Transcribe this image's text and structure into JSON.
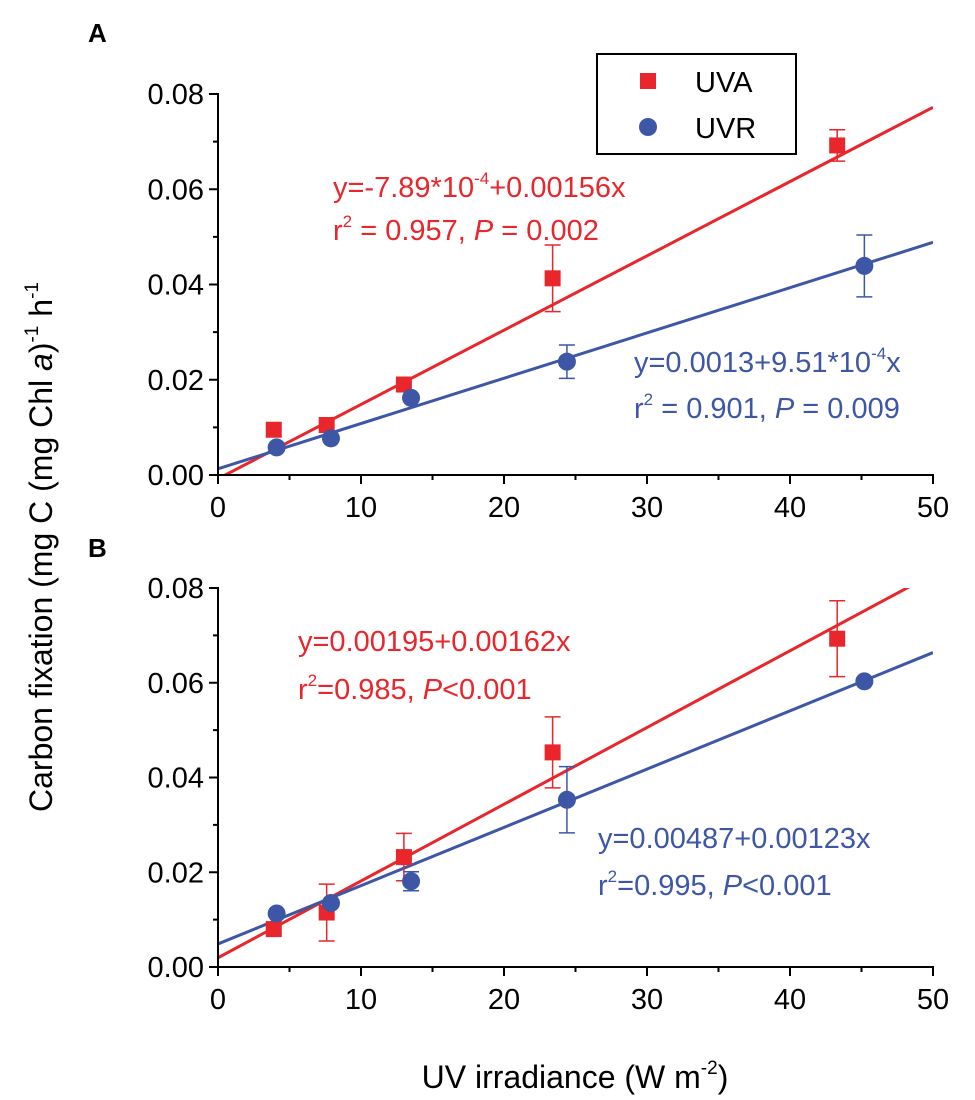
{
  "ylabel": {
    "pre": "Carbon fixation (mg C (mg Chl ",
    "ital": "a",
    "post": ")",
    "sup1": "-1",
    "mid": " h",
    "sup2": "-1"
  },
  "xlabel": {
    "pre": "UV irradiance (W m",
    "sup": "-2",
    "post": ")"
  },
  "legend": {
    "uva": "UVA",
    "uvr": "UVR"
  },
  "colors": {
    "uva": "#e8262b",
    "uvr": "#3e56a6",
    "axis": "#000000"
  },
  "chart_data": [
    {
      "panel": "A",
      "type": "scatter",
      "xlim": [
        0,
        50
      ],
      "ylim": [
        0,
        0.08
      ],
      "xticks": [
        "0",
        "10",
        "20",
        "30",
        "40",
        "50"
      ],
      "yticks": [
        "0.00",
        "0.02",
        "0.04",
        "0.06",
        "0.08"
      ],
      "series": [
        {
          "name": "UVA",
          "points": [
            {
              "x": 3.9,
              "y": 0.0095,
              "err": 0
            },
            {
              "x": 7.6,
              "y": 0.0105,
              "err": 0
            },
            {
              "x": 13.0,
              "y": 0.019,
              "err": 0
            },
            {
              "x": 23.4,
              "y": 0.0413,
              "err": 0.007
            },
            {
              "x": 43.3,
              "y": 0.0692,
              "err": 0.0033
            }
          ],
          "fit": {
            "intercept": -0.000789,
            "slope": 0.00156
          },
          "eq": {
            "pre": "y=-7.89*10",
            "sup": "-4",
            "post": "+0.00156x"
          },
          "stat": {
            "r": "r",
            "rsup": "2",
            "mid": " = 0.957, ",
            "p": "P",
            "post": " = 0.002"
          }
        },
        {
          "name": "UVR",
          "points": [
            {
              "x": 4.1,
              "y": 0.0058,
              "err": 0
            },
            {
              "x": 7.9,
              "y": 0.0077,
              "err": 0
            },
            {
              "x": 13.5,
              "y": 0.0162,
              "err": 0
            },
            {
              "x": 24.4,
              "y": 0.0238,
              "err": 0.0035
            },
            {
              "x": 45.2,
              "y": 0.0439,
              "err": 0.0065
            }
          ],
          "fit": {
            "intercept": 0.0013,
            "slope": 0.000951
          },
          "eq": {
            "pre": "y=0.0013+9.51*10",
            "sup": "-4",
            "post": "x"
          },
          "stat": {
            "r": "r",
            "rsup": "2",
            "mid": " = 0.901, ",
            "p": "P",
            "post": " = 0.009"
          }
        }
      ]
    },
    {
      "panel": "B",
      "type": "scatter",
      "xlim": [
        0,
        50
      ],
      "ylim": [
        0,
        0.08
      ],
      "xticks": [
        "0",
        "10",
        "20",
        "30",
        "40",
        "50"
      ],
      "yticks": [
        "0.00",
        "0.02",
        "0.04",
        "0.06",
        "0.08"
      ],
      "series": [
        {
          "name": "UVA",
          "points": [
            {
              "x": 3.9,
              "y": 0.008,
              "err": 0
            },
            {
              "x": 7.6,
              "y": 0.0115,
              "err": 0.006
            },
            {
              "x": 13.0,
              "y": 0.0232,
              "err": 0.005
            },
            {
              "x": 23.4,
              "y": 0.0453,
              "err": 0.0075
            },
            {
              "x": 43.3,
              "y": 0.0693,
              "err": 0.008
            }
          ],
          "fit": {
            "intercept": 0.00195,
            "slope": 0.00162
          },
          "eq": {
            "pre": "y=0.00195+0.00162x",
            "sup": "",
            "post": ""
          },
          "stat": {
            "r": "r",
            "rsup": "2",
            "mid": "=0.985, ",
            "p": "P",
            "post": "<0.001"
          }
        },
        {
          "name": "UVR",
          "points": [
            {
              "x": 4.1,
              "y": 0.0113,
              "err": 0
            },
            {
              "x": 7.9,
              "y": 0.0135,
              "err": 0
            },
            {
              "x": 13.5,
              "y": 0.0181,
              "err": 0.002
            },
            {
              "x": 24.4,
              "y": 0.0353,
              "err": 0.007
            },
            {
              "x": 45.2,
              "y": 0.0603,
              "err": 0
            }
          ],
          "fit": {
            "intercept": 0.00487,
            "slope": 0.00123
          },
          "eq": {
            "pre": "y=0.00487+0.00123x",
            "sup": "",
            "post": ""
          },
          "stat": {
            "r": "r",
            "rsup": "2",
            "mid": "=0.995, ",
            "p": "P",
            "post": "<0.001"
          }
        }
      ]
    }
  ]
}
